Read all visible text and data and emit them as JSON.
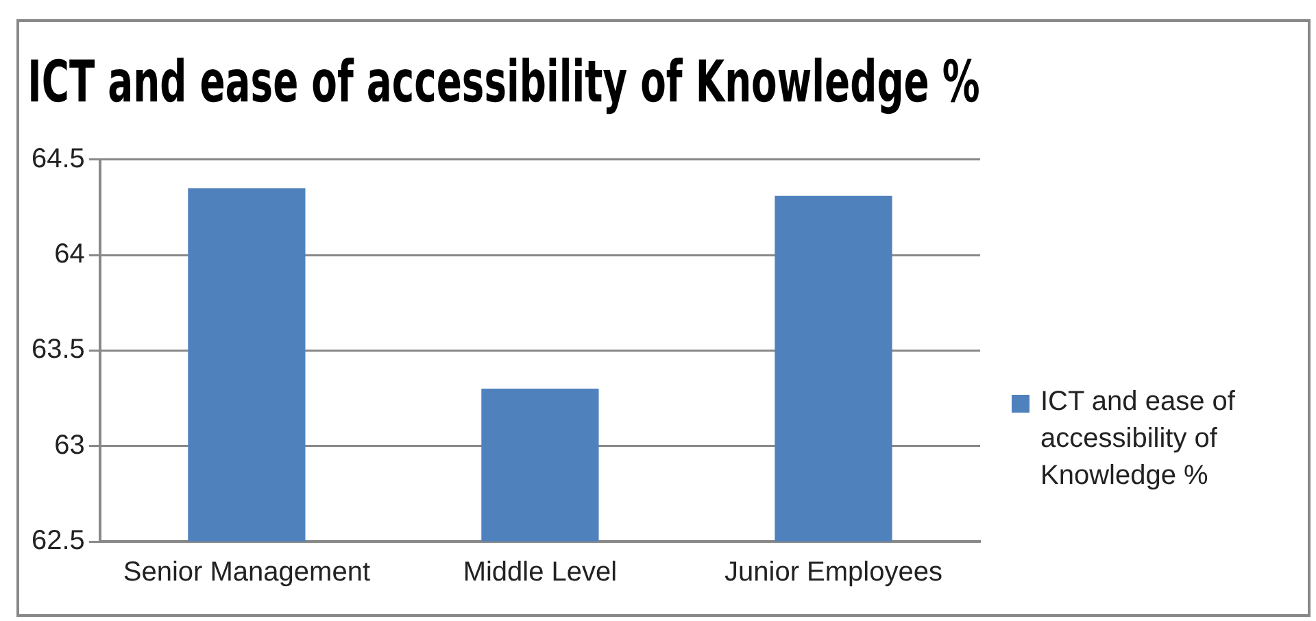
{
  "chart_data": {
    "type": "bar",
    "title": "ICT and ease of accessibility of Knowledge %",
    "categories": [
      "Senior Management",
      "Middle Level",
      "Junior Employees"
    ],
    "series": [
      {
        "name": "ICT and ease of accessibility of Knowledge %",
        "color": "#4f81bd",
        "values": [
          64.35,
          63.3,
          64.31
        ]
      }
    ],
    "ylim": [
      62.5,
      64.5
    ],
    "yticks": [
      62.5,
      63,
      63.5,
      64,
      64.5
    ],
    "grid": "y",
    "legend": "right"
  }
}
